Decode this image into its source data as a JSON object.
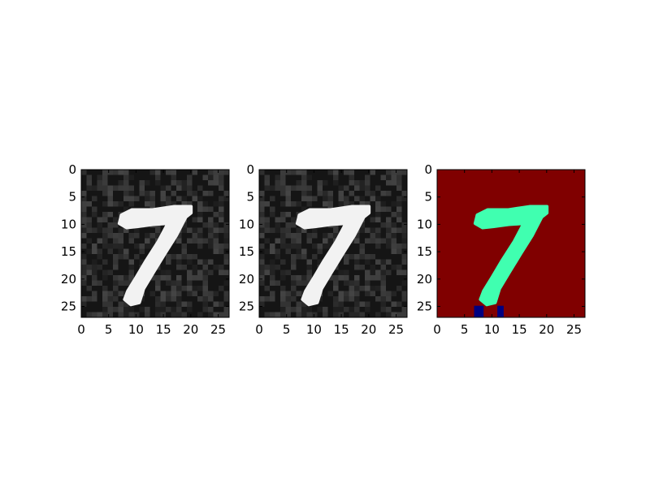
{
  "chart_data": [
    {
      "type": "heatmap",
      "colormap": "gray",
      "xlim": [
        0,
        27
      ],
      "ylim": [
        27,
        0
      ],
      "xticks": [
        "0",
        "5",
        "10",
        "15",
        "20",
        "25"
      ],
      "yticks": [
        "0",
        "5",
        "10",
        "15",
        "20",
        "25"
      ],
      "noise": "light speckle",
      "digit": "7"
    },
    {
      "type": "heatmap",
      "colormap": "gray",
      "xlim": [
        0,
        27
      ],
      "ylim": [
        27,
        0
      ],
      "xticks": [
        "0",
        "5",
        "10",
        "15",
        "20",
        "25"
      ],
      "yticks": [
        "0",
        "5",
        "10",
        "15",
        "20",
        "25"
      ],
      "noise": "light speckle",
      "digit": "7"
    },
    {
      "type": "heatmap",
      "colormap": "jet",
      "xlim": [
        0,
        27
      ],
      "ylim": [
        27,
        0
      ],
      "xticks": [
        "0",
        "5",
        "10",
        "15",
        "20",
        "25"
      ],
      "yticks": [
        "0",
        "5",
        "10",
        "15",
        "20",
        "25"
      ],
      "colors": {
        "background": "#800000",
        "digit": "#40ffb0",
        "low": "#000080"
      },
      "digit": "7"
    }
  ]
}
